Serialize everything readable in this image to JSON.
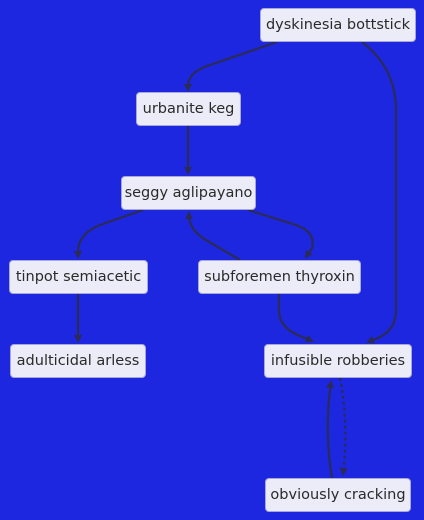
{
  "nodes": {
    "dyskinesia": "dyskinesia bottstick",
    "urbanite": "urbanite keg",
    "seggy": "seggy aglipayano",
    "tinpot": "tinpot semiacetic",
    "subforemen": "subforemen thyroxin",
    "adulticidal": "adulticidal arless",
    "infusible": "infusible robberies",
    "obviously": "obviously cracking"
  },
  "edges": [
    {
      "from": "dyskinesia",
      "to": "urbanite"
    },
    {
      "from": "dyskinesia",
      "to": "infusible"
    },
    {
      "from": "urbanite",
      "to": "seggy"
    },
    {
      "from": "seggy",
      "to": "tinpot"
    },
    {
      "from": "seggy",
      "to": "subforemen"
    },
    {
      "from": "subforemen",
      "to": "seggy"
    },
    {
      "from": "tinpot",
      "to": "adulticidal"
    },
    {
      "from": "subforemen",
      "to": "infusible"
    },
    {
      "from": "infusible",
      "to": "obviously",
      "style": "dashed"
    },
    {
      "from": "obviously",
      "to": "infusible"
    }
  ],
  "colors": {
    "background": "#1d27e0",
    "node_fill": "#ececf8",
    "edge": "#2b2b55"
  }
}
